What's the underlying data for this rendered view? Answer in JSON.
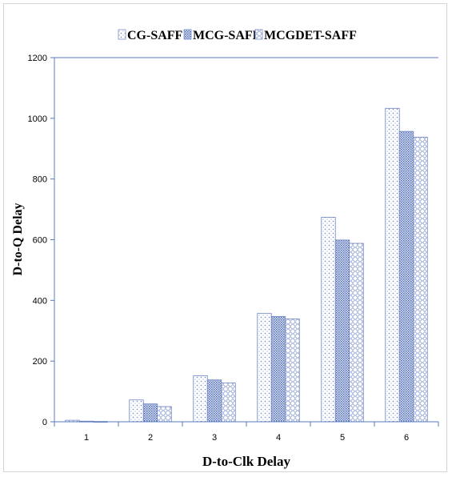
{
  "chart_data": {
    "type": "bar",
    "categories": [
      "1",
      "2",
      "3",
      "4",
      "5",
      "6"
    ],
    "series": [
      {
        "name": "CG-SAFF",
        "values": [
          5,
          72,
          152,
          357,
          674,
          1033
        ]
      },
      {
        "name": "MCG-SAFF",
        "values": [
          2,
          59,
          138,
          347,
          599,
          957
        ]
      },
      {
        "name": "MCGDET-SAFF",
        "values": [
          1,
          50,
          128,
          339,
          588,
          938
        ]
      }
    ],
    "xlabel": "D-to-Clk Delay",
    "ylabel": "D-to-Q Delay",
    "ylim": [
      0,
      1200
    ],
    "yticks": [
      "0",
      "200",
      "400",
      "600",
      "800",
      "1000",
      "1200"
    ],
    "grid": false,
    "legend_position": "top",
    "colors": {
      "bar_pattern": "#7a8fc9",
      "axis": "#5b7bbf"
    },
    "patterns": [
      "dots",
      "crosshatch",
      "diamonds"
    ]
  }
}
